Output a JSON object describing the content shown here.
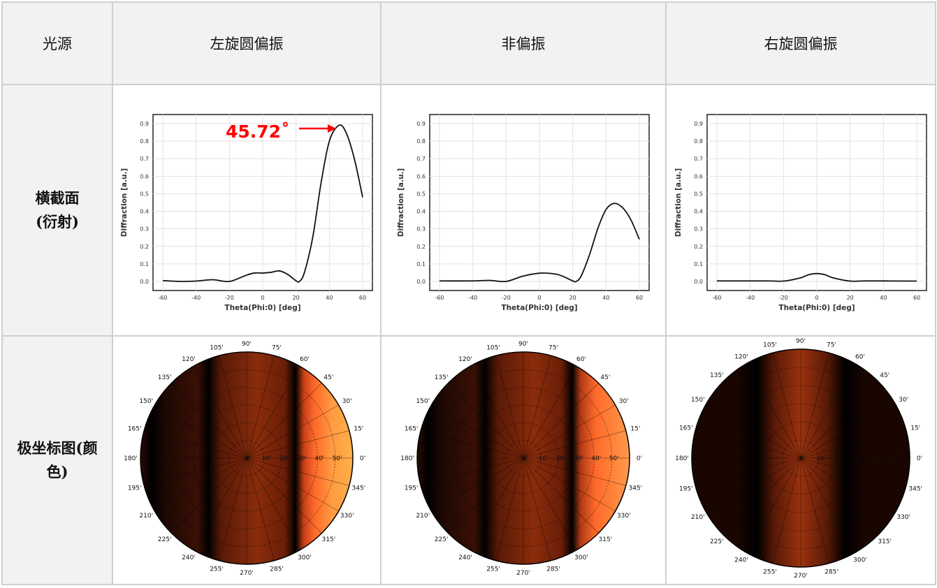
{
  "table": {
    "headers": [
      "光源",
      "左旋圆偏振",
      "非偏振",
      "右旋圆偏振"
    ],
    "row_labels": [
      [
        "横截面",
        "(衍射)"
      ],
      [
        "极坐标图(颜",
        "色)"
      ]
    ]
  },
  "chart_data": [
    {
      "type": "line",
      "xlabel": "Theta(Phi:0) [deg]",
      "ylabel": "Diffraction [a.u.]",
      "xlim": [
        -60,
        60
      ],
      "ylim": [
        0,
        0.9
      ],
      "xticks": [
        "-60",
        "-40",
        "-20",
        "0",
        "20",
        "40",
        "60"
      ],
      "yticks": [
        "0.0",
        "0.1",
        "0.2",
        "0.3",
        "0.4",
        "0.5",
        "0.6",
        "0.7",
        "0.8",
        "0.9"
      ],
      "grid": true,
      "annotation": "45.72˚",
      "annotation_color": "#ff0000",
      "x": [
        -60,
        -50,
        -40,
        -30,
        -20,
        -10,
        -5,
        0,
        5,
        10,
        15,
        20,
        22,
        25,
        30,
        35,
        40,
        45.72,
        50,
        55,
        60
      ],
      "y": [
        0.005,
        0.0,
        0.002,
        0.01,
        0.0,
        0.035,
        0.048,
        0.048,
        0.052,
        0.06,
        0.04,
        0.004,
        0.0,
        0.05,
        0.25,
        0.56,
        0.8,
        0.89,
        0.85,
        0.7,
        0.48
      ]
    },
    {
      "type": "line",
      "xlabel": "Theta(Phi:0) [deg]",
      "ylabel": "Diffraction [a.u.]",
      "xlim": [
        -60,
        60
      ],
      "ylim": [
        0,
        0.9
      ],
      "xticks": [
        "-60",
        "-40",
        "-20",
        "0",
        "20",
        "40",
        "60"
      ],
      "yticks": [
        "0.0",
        "0.1",
        "0.2",
        "0.3",
        "0.4",
        "0.5",
        "0.6",
        "0.7",
        "0.8",
        "0.9"
      ],
      "grid": true,
      "x": [
        -60,
        -40,
        -30,
        -20,
        -10,
        0,
        10,
        15,
        20,
        22,
        25,
        30,
        35,
        40,
        45,
        50,
        55,
        60
      ],
      "y": [
        0.003,
        0.003,
        0.006,
        0.0,
        0.03,
        0.047,
        0.042,
        0.025,
        0.003,
        0.0,
        0.03,
        0.15,
        0.3,
        0.41,
        0.445,
        0.42,
        0.35,
        0.24
      ]
    },
    {
      "type": "line",
      "xlabel": "Theta(Phi:0) [deg]",
      "ylabel": "Diffraction [a.u.]",
      "xlim": [
        -60,
        60
      ],
      "ylim": [
        0,
        0.9
      ],
      "xticks": [
        "-60",
        "-40",
        "-20",
        "0",
        "20",
        "40",
        "60"
      ],
      "yticks": [
        "0.0",
        "0.1",
        "0.2",
        "0.3",
        "0.4",
        "0.5",
        "0.6",
        "0.7",
        "0.8",
        "0.9"
      ],
      "grid": true,
      "x": [
        -60,
        -30,
        -20,
        -10,
        -5,
        0,
        5,
        10,
        20,
        30,
        60
      ],
      "y": [
        0.003,
        0.003,
        0.002,
        0.02,
        0.038,
        0.045,
        0.038,
        0.02,
        0.002,
        0.003,
        0.002
      ]
    }
  ],
  "polar": {
    "angle_labels": [
      "0'",
      "15'",
      "30'",
      "45'",
      "60'",
      "75'",
      "90'",
      "105'",
      "120'",
      "135'",
      "150'",
      "165'",
      "180'",
      "195'",
      "210'",
      "225'",
      "240'",
      "255'",
      "270'",
      "285'",
      "300'",
      "315'",
      "330'",
      "345'"
    ],
    "radial_labels": [
      "0'",
      "10'",
      "20'",
      "30'",
      "40'",
      "50'"
    ],
    "colormap": [
      "#000000",
      "#8a2a0c",
      "#ff6a2a",
      "#ffb04a"
    ]
  }
}
